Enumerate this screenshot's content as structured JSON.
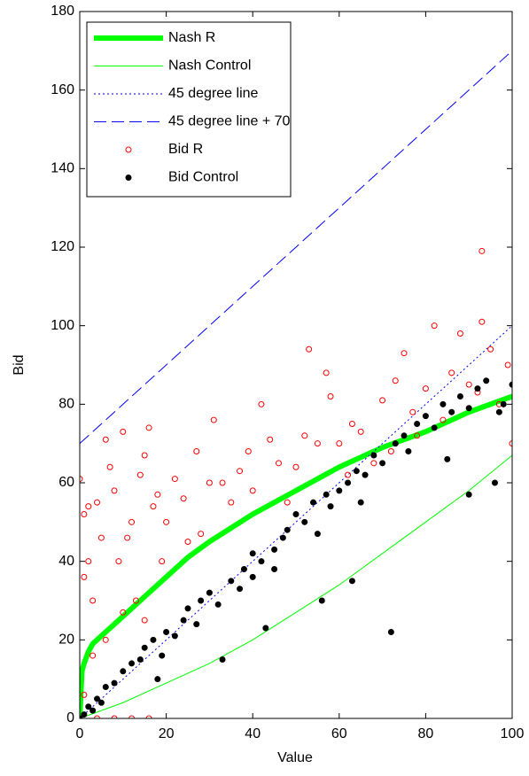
{
  "chart_data": {
    "type": "line",
    "x_label": "Value",
    "y_label": "Bid",
    "xlim": [
      0,
      100
    ],
    "ylim": [
      0,
      180
    ],
    "xticks": [
      0,
      20,
      40,
      60,
      80,
      100
    ],
    "yticks": [
      0,
      20,
      40,
      60,
      80,
      100,
      120,
      140,
      160,
      180
    ],
    "legend": "upper-left",
    "series": [
      {
        "name": "Nash R",
        "color": "#00ff00",
        "line_style": "solid",
        "line_width": 6,
        "marker": "none",
        "x": [
          0,
          0.5,
          1,
          2,
          3,
          5,
          7,
          10,
          15,
          20,
          25,
          30,
          40,
          50,
          60,
          70,
          80,
          90,
          100
        ],
        "values": [
          0,
          12,
          14,
          17,
          19,
          21,
          23,
          26,
          31,
          36,
          41,
          45,
          52,
          58,
          64,
          69,
          73,
          78,
          82
        ]
      },
      {
        "name": "Nash Control",
        "color": "#00ff00",
        "line_style": "solid",
        "line_width": 1,
        "marker": "none",
        "x": [
          0,
          10,
          20,
          30,
          40,
          50,
          60,
          70,
          80,
          90,
          100
        ],
        "values": [
          0,
          4,
          9,
          14,
          20,
          27,
          34,
          42,
          50,
          58,
          67
        ]
      },
      {
        "name": "45 degree line",
        "color": "#0000ff",
        "line_style": "dotted",
        "line_width": 1,
        "marker": "none",
        "x": [
          0,
          100
        ],
        "values": [
          0,
          100
        ]
      },
      {
        "name": "45 degree line + 70",
        "color": "#0000ff",
        "line_style": "dashed",
        "line_width": 1,
        "marker": "none",
        "x": [
          0,
          100
        ],
        "values": [
          70,
          170
        ]
      },
      {
        "name": "Bid R",
        "color": "#ff0000",
        "line_style": "none",
        "marker": "circle-open",
        "x": [
          0,
          1,
          1,
          2,
          2,
          3,
          4,
          5,
          6,
          7,
          8,
          9,
          10,
          11,
          12,
          13,
          14,
          15,
          16,
          17,
          18,
          19,
          20,
          22,
          24,
          25,
          27,
          28,
          30,
          31,
          33,
          35,
          37,
          39,
          40,
          42,
          44,
          46,
          48,
          50,
          52,
          53,
          55,
          57,
          58,
          60,
          62,
          63,
          65,
          68,
          70,
          72,
          73,
          75,
          77,
          78,
          80,
          82,
          84,
          86,
          88,
          90,
          92,
          93,
          93,
          95,
          97,
          99,
          100,
          4,
          8,
          16,
          12,
          1,
          3,
          10,
          15,
          6
        ],
        "values": [
          61,
          52,
          36,
          54,
          40,
          30,
          55,
          46,
          71,
          64,
          58,
          40,
          73,
          46,
          50,
          30,
          62,
          67,
          74,
          54,
          57,
          40,
          50,
          61,
          56,
          45,
          68,
          47,
          60,
          76,
          60,
          55,
          63,
          68,
          58,
          80,
          71,
          65,
          55,
          64,
          72,
          94,
          70,
          88,
          82,
          70,
          62,
          75,
          73,
          65,
          81,
          68,
          86,
          93,
          78,
          72,
          84,
          100,
          76,
          88,
          98,
          85,
          83,
          119,
          101,
          94,
          80,
          90,
          70,
          0,
          0,
          0,
          0,
          6,
          16,
          27,
          25,
          20
        ]
      },
      {
        "name": "Bid Control",
        "color": "#000000",
        "line_style": "none",
        "marker": "circle-filled",
        "x": [
          0,
          1,
          2,
          3,
          4,
          5,
          6,
          8,
          10,
          12,
          14,
          15,
          17,
          19,
          20,
          22,
          24,
          25,
          27,
          28,
          30,
          32,
          33,
          35,
          37,
          38,
          40,
          42,
          43,
          45,
          47,
          48,
          50,
          52,
          54,
          56,
          57,
          58,
          60,
          62,
          63,
          64,
          66,
          68,
          70,
          72,
          73,
          75,
          76,
          78,
          80,
          82,
          84,
          86,
          88,
          90,
          92,
          94,
          96,
          97,
          98,
          100,
          90,
          85,
          18,
          40,
          55,
          65,
          45
        ],
        "values": [
          0,
          1,
          3,
          2,
          5,
          4,
          8,
          9,
          12,
          14,
          15,
          18,
          20,
          16,
          22,
          21,
          25,
          28,
          24,
          30,
          32,
          29,
          15,
          35,
          33,
          38,
          42,
          40,
          23,
          43,
          46,
          48,
          52,
          50,
          55,
          30,
          57,
          54,
          58,
          60,
          35,
          63,
          62,
          67,
          65,
          22,
          70,
          72,
          68,
          75,
          77,
          74,
          80,
          78,
          82,
          79,
          84,
          86,
          60,
          78,
          80,
          85,
          57,
          66,
          10,
          36,
          47,
          55,
          38
        ]
      }
    ]
  }
}
